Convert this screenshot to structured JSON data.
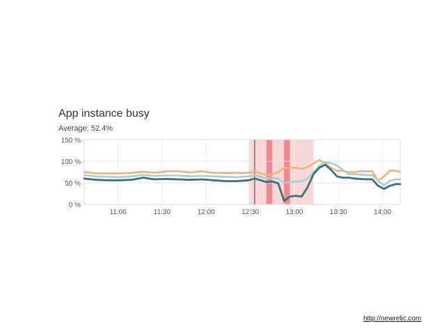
{
  "chart_data": {
    "type": "line",
    "title": "App instance busy",
    "subtitle": "Average: 52.4%",
    "y_unit": "%",
    "ylim": [
      0,
      150
    ],
    "yticks": [
      {
        "value": 0,
        "label": "0 %"
      },
      {
        "value": 50,
        "label": "50 %"
      },
      {
        "value": 100,
        "label": "100 %"
      },
      {
        "value": 150,
        "label": "150 %"
      }
    ],
    "xlim": [
      "10:37",
      "14:12"
    ],
    "xticks": [
      "11:00",
      "11:30",
      "12:00",
      "12:30",
      "13:00",
      "13:30",
      "14:00"
    ],
    "grid": true,
    "x": [
      "10:37",
      "10:45",
      "10:53",
      "11:01",
      "11:09",
      "11:17",
      "11:25",
      "11:33",
      "11:41",
      "11:49",
      "11:57",
      "12:05",
      "12:13",
      "12:21",
      "12:29",
      "12:33",
      "12:37",
      "12:41",
      "12:45",
      "12:49",
      "12:53",
      "12:57",
      "13:01",
      "13:05",
      "13:09",
      "13:13",
      "13:17",
      "13:21",
      "13:25",
      "13:29",
      "13:33",
      "13:37",
      "13:41",
      "13:45",
      "13:49",
      "13:53",
      "13:57",
      "14:01",
      "14:05",
      "14:09",
      "14:12"
    ],
    "series": [
      {
        "color": "#f0b27a",
        "values": [
          75,
          72,
          72,
          72,
          73,
          76,
          73,
          77,
          77,
          74,
          77,
          73,
          73,
          73,
          73,
          77,
          72,
          68,
          70,
          75,
          85,
          85,
          85,
          82,
          87,
          95,
          103,
          96,
          85,
          78,
          78,
          75,
          75,
          77,
          77,
          77,
          55,
          65,
          78,
          78,
          75
        ]
      },
      {
        "color": "#a8cfcf",
        "values": [
          68,
          65,
          64,
          63,
          65,
          68,
          66,
          67,
          67,
          65,
          66,
          65,
          64,
          63,
          65,
          68,
          64,
          60,
          62,
          60,
          50,
          52,
          53,
          53,
          60,
          75,
          90,
          98,
          96,
          90,
          80,
          70,
          70,
          69,
          68,
          68,
          55,
          44,
          55,
          58,
          58
        ]
      },
      {
        "color": "#3e6e78",
        "values": [
          60,
          57,
          56,
          56,
          57,
          62,
          58,
          59,
          58,
          57,
          58,
          56,
          54,
          54,
          56,
          60,
          56,
          52,
          53,
          49,
          8,
          18,
          20,
          18,
          40,
          70,
          85,
          92,
          80,
          65,
          62,
          62,
          60,
          59,
          58,
          58,
          43,
          36,
          43,
          47,
          47
        ]
      }
    ],
    "highlight_bands": [
      {
        "start": "12:29",
        "end": "13:13",
        "color": "#f9d7d9"
      },
      {
        "start": "12:41",
        "end": "12:45",
        "color": "#ee8a8f"
      },
      {
        "start": "12:53",
        "end": "12:57",
        "color": "#ee8a8f"
      }
    ],
    "marker_line": "12:33"
  },
  "source_link": "http://newrelic.com"
}
